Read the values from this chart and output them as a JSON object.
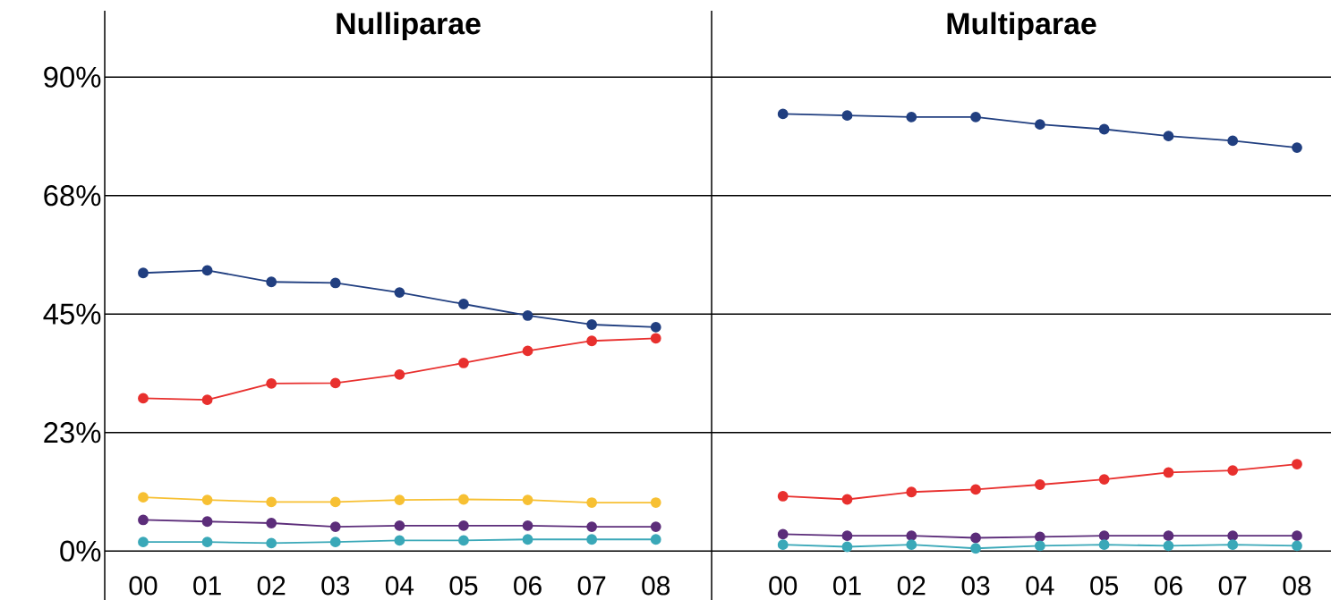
{
  "chart_data": [
    {
      "type": "line",
      "title": "Nulliparae",
      "categories": [
        "00",
        "01",
        "02",
        "03",
        "04",
        "05",
        "06",
        "07",
        "08"
      ],
      "ylim": [
        -9.3,
        102.6
      ],
      "yticks": [
        {
          "value": 0,
          "label": "0%"
        },
        {
          "value": 22.5,
          "label": "23%"
        },
        {
          "value": 45,
          "label": "45%"
        },
        {
          "value": 67.5,
          "label": "68%"
        },
        {
          "value": 90,
          "label": "90%"
        }
      ],
      "grid": "y",
      "marker": "circle",
      "line_style": "solid",
      "series": [
        {
          "color": "#213f80",
          "values": [
            52.8,
            53.3,
            51.1,
            50.9,
            49.1,
            46.9,
            44.7,
            43.0,
            42.5
          ]
        },
        {
          "color": "#e8302e",
          "values": [
            29.0,
            28.7,
            31.8,
            31.9,
            33.5,
            35.7,
            38.0,
            39.9,
            40.4
          ]
        },
        {
          "color": "#f7c033",
          "values": [
            10.2,
            9.7,
            9.3,
            9.3,
            9.7,
            9.8,
            9.7,
            9.2,
            9.2
          ]
        },
        {
          "color": "#5c2d7a",
          "values": [
            5.9,
            5.6,
            5.3,
            4.6,
            4.8,
            4.8,
            4.8,
            4.6,
            4.6
          ]
        },
        {
          "color": "#3aa8b8",
          "values": [
            1.7,
            1.7,
            1.5,
            1.7,
            2.0,
            2.0,
            2.2,
            2.2,
            2.2
          ]
        }
      ]
    },
    {
      "type": "line",
      "title": "Multiparae",
      "categories": [
        "00",
        "01",
        "02",
        "03",
        "04",
        "05",
        "06",
        "07",
        "08"
      ],
      "ylim": [
        -9.3,
        102.6
      ],
      "yticks": [
        {
          "value": 0,
          "label": null
        },
        {
          "value": 22.5,
          "label": null
        },
        {
          "value": 45,
          "label": null
        },
        {
          "value": 67.5,
          "label": null
        },
        {
          "value": 90,
          "label": null
        }
      ],
      "grid": "y",
      "marker": "circle",
      "line_style": "solid",
      "tick_labels": "x",
      "series": [
        {
          "color": "#213f80",
          "values": [
            83.0,
            82.7,
            82.4,
            82.4,
            81.0,
            80.1,
            78.8,
            77.9,
            76.6
          ]
        },
        {
          "color": "#e8302e",
          "values": [
            10.4,
            9.8,
            11.2,
            11.7,
            12.6,
            13.6,
            14.9,
            15.3,
            16.5
          ]
        },
        {
          "color": "#5c2d7a",
          "values": [
            3.2,
            2.9,
            2.9,
            2.5,
            2.7,
            2.9,
            2.9,
            2.9,
            2.9
          ]
        },
        {
          "color": "#3aa8b8",
          "values": [
            1.2,
            0.8,
            1.2,
            0.5,
            1.0,
            1.2,
            1.0,
            1.2,
            1.0
          ]
        }
      ]
    }
  ]
}
